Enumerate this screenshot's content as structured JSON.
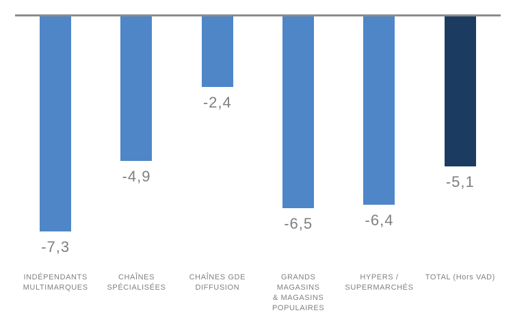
{
  "chart_data": {
    "type": "bar",
    "title": "",
    "xlabel": "",
    "ylabel": "",
    "legend_position": "none",
    "grid": false,
    "orientation": "vertical-negative",
    "ylim": [
      -8,
      0
    ],
    "categories": [
      "INDÉPENDANTS MULTIMARQUES",
      "CHAÎNES SPÉCIALISÉES",
      "CHAÎNES GDE DIFFUSION",
      "GRANDS MAGASINS & MAGASINS POPULAIRES",
      "HYPERS / SUPERMARCHÉS",
      "TOTAL (Hors VAD)"
    ],
    "values": [
      -7.3,
      -4.9,
      -2.4,
      -6.5,
      -6.4,
      -5.1
    ],
    "bars": [
      {
        "category": "INDÉPENDANTS\nMULTIMARQUES",
        "value": -7.3,
        "value_label": "-7,3",
        "color": "#4E86C8"
      },
      {
        "category": "CHAÎNES\nSPÉCIALISÉES",
        "value": -4.9,
        "value_label": "-4,9",
        "color": "#4E86C8"
      },
      {
        "category": "CHAÎNES GDE\nDIFFUSION",
        "value": -2.4,
        "value_label": "-2,4",
        "color": "#4E86C8"
      },
      {
        "category": "GRANDS MAGASINS\n& MAGASINS\nPOPULAIRES",
        "value": -6.5,
        "value_label": "-6,5",
        "color": "#4E86C8"
      },
      {
        "category": "HYPERS /\nSUPERMARCHÉS",
        "value": -6.4,
        "value_label": "-6,4",
        "color": "#4E86C8"
      },
      {
        "category": "TOTAL (Hors VAD)",
        "value": -5.1,
        "value_label": "-5,1",
        "color": "#1C3B60"
      }
    ],
    "colors": {
      "bar_default": "#4E86C8",
      "bar_total": "#1C3B60",
      "baseline": "#8C8C8C",
      "label_text": "#7F7F7F"
    }
  }
}
